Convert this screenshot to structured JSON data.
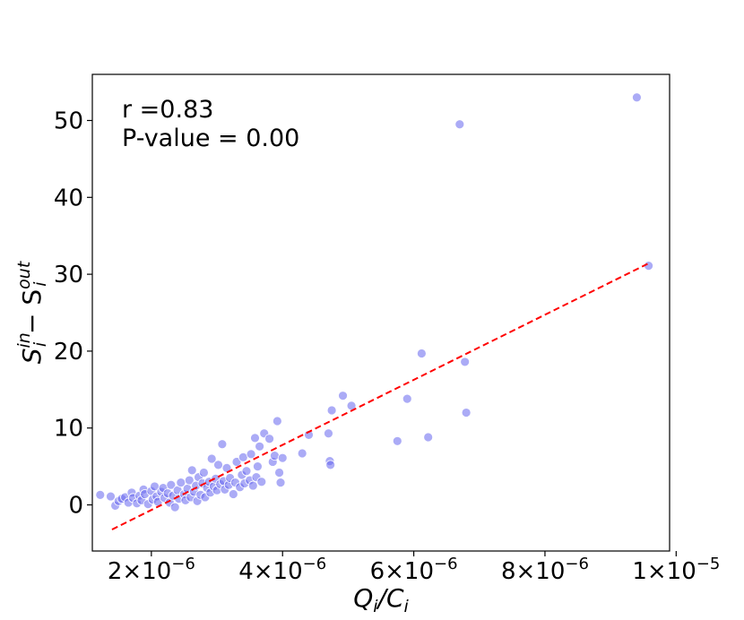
{
  "chart_data": {
    "type": "scatter",
    "title": "",
    "xlabel": "Q_i/C_i",
    "ylabel": "S_i^in − S_i^out",
    "xlim": [
      1.1e-06,
      9.9e-06
    ],
    "ylim": [
      -6,
      56
    ],
    "xscale_label_format": "scientific",
    "grid": false,
    "xticks": [
      {
        "value": 2e-06,
        "mant": "2",
        "exp": "−6"
      },
      {
        "value": 4e-06,
        "mant": "4",
        "exp": "−6"
      },
      {
        "value": 6e-06,
        "mant": "6",
        "exp": "−6"
      },
      {
        "value": 8e-06,
        "mant": "8",
        "exp": "−6"
      },
      {
        "value": 1e-05,
        "mant": "1",
        "exp": "−5"
      }
    ],
    "yticks": [
      {
        "value": 0,
        "label": "0"
      },
      {
        "value": 10,
        "label": "10"
      },
      {
        "value": 20,
        "label": "20"
      },
      {
        "value": 30,
        "label": "30"
      },
      {
        "value": 40,
        "label": "40"
      },
      {
        "value": 50,
        "label": "50"
      }
    ],
    "annotations": {
      "r_text": "r =0.83",
      "p_text": "P-value = 0.00"
    },
    "fit_line": {
      "color": "#ff0000",
      "style": "dashed",
      "x": [
        1.4e-06,
        9.6e-06
      ],
      "y": [
        -3.2,
        31.5
      ]
    },
    "series": [
      {
        "marker_color": "#6666ee",
        "points": [
          [
            1.22e-06,
            1.3
          ],
          [
            1.38e-06,
            1.1
          ],
          [
            1.45e-06,
            -0.1
          ],
          [
            1.5e-06,
            0.5
          ],
          [
            1.55e-06,
            0.8
          ],
          [
            1.6e-06,
            1.0
          ],
          [
            1.65e-06,
            0.3
          ],
          [
            1.7e-06,
            1.6
          ],
          [
            1.72e-06,
            0.9
          ],
          [
            1.78e-06,
            0.2
          ],
          [
            1.82e-06,
            1.2
          ],
          [
            1.85e-06,
            0.6
          ],
          [
            1.88e-06,
            2.0
          ],
          [
            1.9e-06,
            1.4
          ],
          [
            1.95e-06,
            0.1
          ],
          [
            2e-06,
            1.8
          ],
          [
            2.02e-06,
            0.7
          ],
          [
            2.05e-06,
            2.4
          ],
          [
            2.08e-06,
            1.1
          ],
          [
            2.1e-06,
            0.4
          ],
          [
            2.15e-06,
            1.7
          ],
          [
            2.18e-06,
            2.2
          ],
          [
            2.2e-06,
            0.9
          ],
          [
            2.25e-06,
            1.5
          ],
          [
            2.28e-06,
            0.3
          ],
          [
            2.3e-06,
            2.6
          ],
          [
            2.33e-06,
            1.2
          ],
          [
            2.36e-06,
            -0.3
          ],
          [
            2.4e-06,
            1.9
          ],
          [
            2.42e-06,
            0.8
          ],
          [
            2.45e-06,
            2.9
          ],
          [
            2.5e-06,
            1.4
          ],
          [
            2.52e-06,
            0.6
          ],
          [
            2.55e-06,
            2.1
          ],
          [
            2.58e-06,
            3.2
          ],
          [
            2.6e-06,
            1.0
          ],
          [
            2.62e-06,
            4.5
          ],
          [
            2.65e-06,
            1.7
          ],
          [
            2.68e-06,
            2.5
          ],
          [
            2.7e-06,
            0.5
          ],
          [
            2.72e-06,
            3.6
          ],
          [
            2.75e-06,
            1.3
          ],
          [
            2.78e-06,
            2.8
          ],
          [
            2.8e-06,
            4.2
          ],
          [
            2.82e-06,
            1.0
          ],
          [
            2.85e-06,
            2.2
          ],
          [
            2.88e-06,
            3.0
          ],
          [
            2.9e-06,
            1.6
          ],
          [
            2.92e-06,
            6.0
          ],
          [
            2.95e-06,
            2.4
          ],
          [
            2.98e-06,
            3.4
          ],
          [
            3e-06,
            1.9
          ],
          [
            3.02e-06,
            5.2
          ],
          [
            3.05e-06,
            2.7
          ],
          [
            3.08e-06,
            7.9
          ],
          [
            3.1e-06,
            3.1
          ],
          [
            3.12e-06,
            2.0
          ],
          [
            3.15e-06,
            4.8
          ],
          [
            3.18e-06,
            2.6
          ],
          [
            3.2e-06,
            3.5
          ],
          [
            3.25e-06,
            1.4
          ],
          [
            3.28e-06,
            2.9
          ],
          [
            3.3e-06,
            5.6
          ],
          [
            3.35e-06,
            2.3
          ],
          [
            3.38e-06,
            3.9
          ],
          [
            3.4e-06,
            6.2
          ],
          [
            3.42e-06,
            2.8
          ],
          [
            3.45e-06,
            4.4
          ],
          [
            3.5e-06,
            3.2
          ],
          [
            3.52e-06,
            6.6
          ],
          [
            3.55e-06,
            2.5
          ],
          [
            3.58e-06,
            8.7
          ],
          [
            3.6e-06,
            3.6
          ],
          [
            3.62e-06,
            5.0
          ],
          [
            3.65e-06,
            7.6
          ],
          [
            3.68e-06,
            3.0
          ],
          [
            3.72e-06,
            9.3
          ],
          [
            3.8e-06,
            8.6
          ],
          [
            3.85e-06,
            5.6
          ],
          [
            3.88e-06,
            6.4
          ],
          [
            3.92e-06,
            10.9
          ],
          [
            3.95e-06,
            4.2
          ],
          [
            3.97e-06,
            2.9
          ],
          [
            4e-06,
            6.1
          ],
          [
            4.3e-06,
            6.7
          ],
          [
            4.4e-06,
            9.1
          ],
          [
            4.7e-06,
            9.3
          ],
          [
            4.72e-06,
            5.7
          ],
          [
            4.73e-06,
            5.2
          ],
          [
            4.75e-06,
            12.3
          ],
          [
            4.92e-06,
            14.2
          ],
          [
            5.05e-06,
            12.9
          ],
          [
            5.75e-06,
            8.3
          ],
          [
            5.9e-06,
            13.8
          ],
          [
            6.12e-06,
            19.7
          ],
          [
            6.22e-06,
            8.8
          ],
          [
            6.7e-06,
            49.5
          ],
          [
            6.78e-06,
            18.6
          ],
          [
            6.8e-06,
            12.0
          ],
          [
            9.4e-06,
            53.0
          ],
          [
            9.58e-06,
            31.1
          ]
        ]
      }
    ]
  }
}
